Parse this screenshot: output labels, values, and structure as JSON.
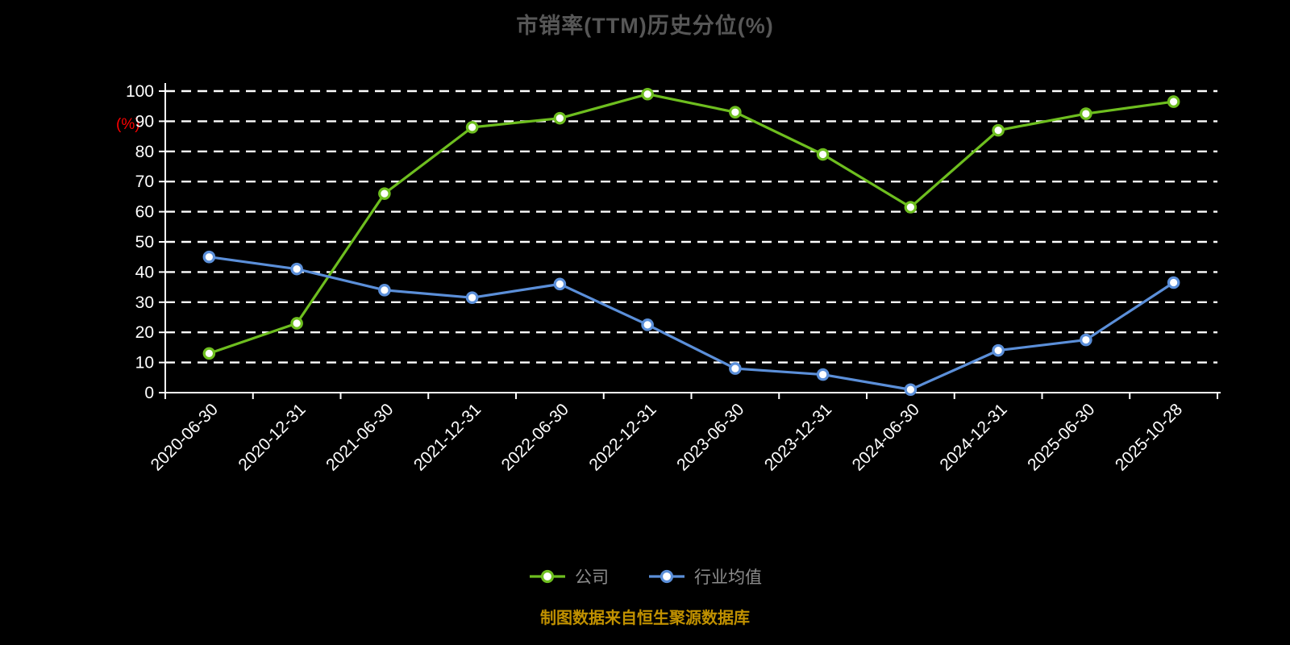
{
  "chart_data": {
    "type": "line",
    "title": "市销率(TTM)历史分位(%)",
    "ylabel": "(%)",
    "ylim": [
      0,
      100
    ],
    "ytick_step": 10,
    "grid": true,
    "legend_position": "bottom",
    "categories": [
      "2020-06-30",
      "2020-12-31",
      "2021-06-30",
      "2021-12-31",
      "2022-06-30",
      "2022-12-31",
      "2023-06-30",
      "2023-12-31",
      "2024-06-30",
      "2024-12-31",
      "2025-06-30",
      "2025-10-28"
    ],
    "series": [
      {
        "name": "公司",
        "color": "#6ebe1f",
        "values": [
          13,
          23,
          66,
          88,
          91,
          99,
          93,
          79,
          61.5,
          87,
          92.5,
          96.5
        ]
      },
      {
        "name": "行业均值",
        "color": "#5b8fd9",
        "values": [
          45,
          41,
          34,
          31.5,
          36,
          22.5,
          8,
          6,
          1,
          14,
          17.5,
          36.5
        ]
      }
    ],
    "footnote": "制图数据来自恒生聚源数据库",
    "colors": {
      "background": "#000000",
      "title": "#575757",
      "axis": "#ffffff",
      "gridline": "#ffffff",
      "ylabel": "#ff0000",
      "legend_text": "#8c8c8c",
      "footnote": "#c19100"
    }
  }
}
